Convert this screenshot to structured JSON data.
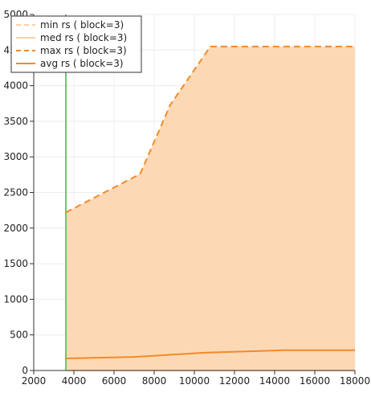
{
  "chart_data": {
    "type": "line",
    "xlim": [
      2000,
      18000
    ],
    "ylim": [
      0,
      5000
    ],
    "xticks": [
      2000,
      4000,
      6000,
      8000,
      10000,
      12000,
      14000,
      16000,
      18000
    ],
    "yticks": [
      0,
      500,
      1000,
      1500,
      2000,
      2500,
      3000,
      3500,
      4000,
      4500,
      5000
    ],
    "grid": true,
    "legend_position": "top-left",
    "vertical_marker": {
      "x": 3600,
      "color": "#66cc66"
    },
    "fill_band": {
      "lower_series": "min rs ( block=3)",
      "upper_series": "max rs ( block=3)",
      "color": "#fdd8b5"
    },
    "series": [
      {
        "name": "min rs ( block=3)",
        "style": "dashed",
        "color": "#fdd0a2",
        "x": [
          3600,
          18000
        ],
        "values": [
          0,
          0
        ]
      },
      {
        "name": "med rs ( block=3)",
        "style": "solid",
        "color": "#fdd0a2",
        "x": [
          3600,
          18000
        ],
        "values": [
          0,
          0
        ]
      },
      {
        "name": "max rs ( block=3)",
        "style": "dashed",
        "color": "#f28a2a",
        "x": [
          3600,
          7300,
          8800,
          10800,
          18000
        ],
        "values": [
          2220,
          2760,
          3730,
          4550,
          4550
        ]
      },
      {
        "name": "avg rs ( block=3)",
        "style": "solid",
        "color": "#f28a2a",
        "x": [
          3600,
          7000,
          10500,
          14500,
          18000
        ],
        "values": [
          170,
          190,
          250,
          285,
          285
        ]
      }
    ]
  }
}
